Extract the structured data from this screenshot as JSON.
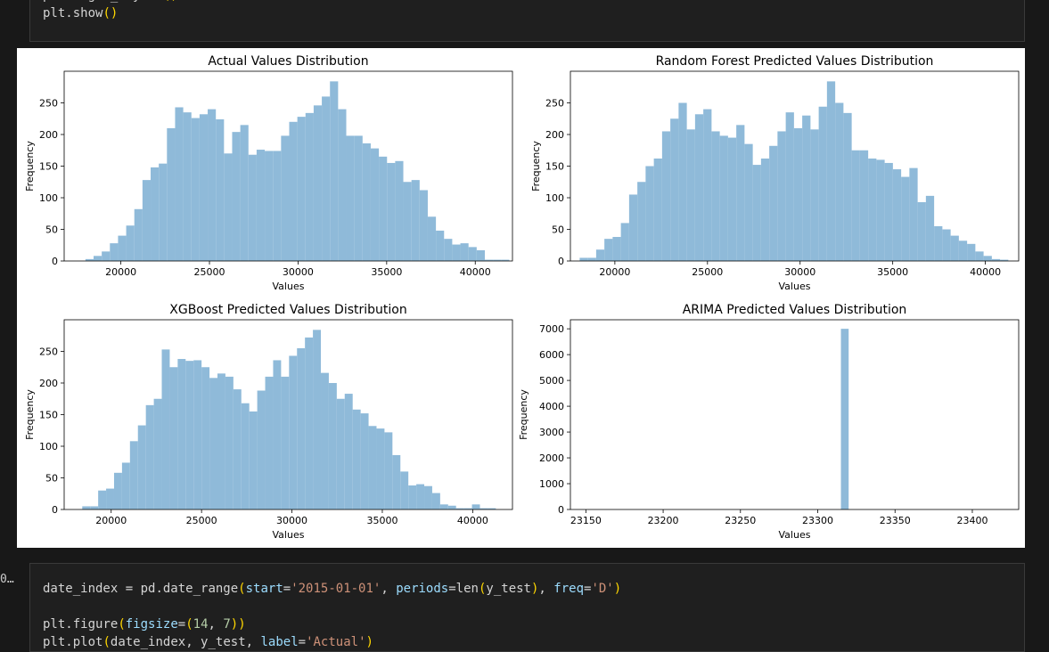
{
  "top_cell": {
    "lines": [
      [
        [
          "plt",
          "tok-plain"
        ],
        [
          ".",
          "tok-op"
        ],
        [
          "tight_layout",
          "tok-plain"
        ],
        [
          "()",
          "tok-punc"
        ]
      ],
      [
        [
          "plt",
          "tok-plain"
        ],
        [
          ".",
          "tok-op"
        ],
        [
          "show",
          "tok-plain"
        ],
        [
          "()",
          "tok-punc"
        ]
      ]
    ]
  },
  "bottom_cell": {
    "execution_count": "0…",
    "lines": [
      [
        [
          "date_index ",
          "tok-plain"
        ],
        [
          "= ",
          "tok-op"
        ],
        [
          "pd",
          "tok-plain"
        ],
        [
          ".",
          "tok-op"
        ],
        [
          "date_range",
          "tok-plain"
        ],
        [
          "(",
          "tok-punc"
        ],
        [
          "start",
          "tok-param"
        ],
        [
          "=",
          "tok-op"
        ],
        [
          "'2015-01-01'",
          "tok-str"
        ],
        [
          ", ",
          "tok-plain"
        ],
        [
          "periods",
          "tok-param"
        ],
        [
          "=",
          "tok-op"
        ],
        [
          "len",
          "tok-plain"
        ],
        [
          "(",
          "tok-punc"
        ],
        [
          "y_test",
          "tok-plain"
        ],
        [
          ")",
          "tok-punc"
        ],
        [
          ", ",
          "tok-plain"
        ],
        [
          "freq",
          "tok-param"
        ],
        [
          "=",
          "tok-op"
        ],
        [
          "'D'",
          "tok-str"
        ],
        [
          ")",
          "tok-punc"
        ]
      ],
      [],
      [
        [
          "plt",
          "tok-plain"
        ],
        [
          ".",
          "tok-op"
        ],
        [
          "figure",
          "tok-plain"
        ],
        [
          "(",
          "tok-punc"
        ],
        [
          "figsize",
          "tok-param"
        ],
        [
          "=",
          "tok-op"
        ],
        [
          "(",
          "tok-punc"
        ],
        [
          "14",
          "tok-num"
        ],
        [
          ", ",
          "tok-plain"
        ],
        [
          "7",
          "tok-num"
        ],
        [
          "))",
          "tok-punc"
        ]
      ],
      [
        [
          "plt",
          "tok-plain"
        ],
        [
          ".",
          "tok-op"
        ],
        [
          "plot",
          "tok-plain"
        ],
        [
          "(",
          "tok-punc"
        ],
        [
          "date_index",
          "tok-plain"
        ],
        [
          ", ",
          "tok-plain"
        ],
        [
          "y_test",
          "tok-plain"
        ],
        [
          ", ",
          "tok-plain"
        ],
        [
          "label",
          "tok-param"
        ],
        [
          "=",
          "tok-op"
        ],
        [
          "'Actual'",
          "tok-str"
        ],
        [
          ")",
          "tok-punc"
        ]
      ]
    ]
  },
  "colors": {
    "bar": "#8fbad9"
  },
  "chart_data": [
    {
      "type": "bar",
      "title": "Actual Values Distribution",
      "xlabel": "Values",
      "ylabel": "Frequency",
      "xlim": [
        16800,
        42100
      ],
      "ylim": [
        0,
        300
      ],
      "xticks": [
        20000,
        25000,
        30000,
        35000,
        40000
      ],
      "yticks": [
        0,
        50,
        100,
        150,
        200,
        250
      ],
      "bin_start": 18000,
      "bin_width": 460,
      "values": [
        3,
        8,
        15,
        28,
        40,
        56,
        82,
        128,
        148,
        154,
        210,
        243,
        235,
        226,
        232,
        240,
        224,
        170,
        204,
        215,
        168,
        176,
        174,
        174,
        198,
        220,
        228,
        234,
        246,
        260,
        284,
        240,
        198,
        198,
        186,
        178,
        165,
        155,
        158,
        125,
        128,
        112,
        70,
        48,
        35,
        26,
        28,
        22,
        17,
        2,
        2,
        2
      ]
    },
    {
      "type": "bar",
      "title": "Random Forest Predicted Values Distribution",
      "xlabel": "Values",
      "ylabel": "Frequency",
      "xlim": [
        17600,
        41800
      ],
      "ylim": [
        0,
        300
      ],
      "xticks": [
        20000,
        25000,
        30000,
        35000,
        40000
      ],
      "yticks": [
        0,
        50,
        100,
        150,
        200,
        250
      ],
      "bin_start": 18100,
      "bin_width": 445,
      "values": [
        5,
        5,
        18,
        35,
        38,
        60,
        105,
        125,
        150,
        162,
        205,
        225,
        250,
        208,
        232,
        240,
        205,
        198,
        195,
        215,
        185,
        152,
        162,
        182,
        205,
        235,
        210,
        230,
        208,
        244,
        284,
        250,
        234,
        175,
        175,
        162,
        160,
        155,
        145,
        133,
        147,
        93,
        103,
        55,
        50,
        40,
        32,
        27,
        15,
        8,
        3,
        2
      ]
    },
    {
      "type": "bar",
      "title": "XGBoost Predicted Values Distribution",
      "xlabel": "Values",
      "ylabel": "Frequency",
      "xlim": [
        17400,
        42200
      ],
      "ylim": [
        0,
        300
      ],
      "xticks": [
        20000,
        25000,
        30000,
        35000,
        40000
      ],
      "yticks": [
        0,
        50,
        100,
        150,
        200,
        250
      ],
      "bin_start": 18400,
      "bin_width": 440,
      "values": [
        5,
        5,
        30,
        33,
        58,
        74,
        108,
        133,
        165,
        175,
        253,
        225,
        238,
        235,
        236,
        225,
        208,
        215,
        210,
        190,
        168,
        155,
        188,
        210,
        236,
        210,
        243,
        255,
        272,
        284,
        216,
        200,
        175,
        183,
        158,
        152,
        132,
        128,
        122,
        86,
        60,
        38,
        40,
        37,
        26,
        8,
        6,
        2,
        2,
        8,
        2,
        2
      ]
    },
    {
      "type": "bar",
      "title": "ARIMA Predicted Values Distribution",
      "xlabel": "Values",
      "ylabel": "Frequency",
      "xlim": [
        23140,
        23430
      ],
      "ylim": [
        0,
        7350
      ],
      "xticks": [
        23150,
        23200,
        23250,
        23300,
        23350,
        23400
      ],
      "yticks": [
        0,
        1000,
        2000,
        3000,
        4000,
        5000,
        6000,
        7000
      ],
      "bin_start": 23315,
      "bin_width": 5,
      "values": [
        7000
      ]
    }
  ]
}
